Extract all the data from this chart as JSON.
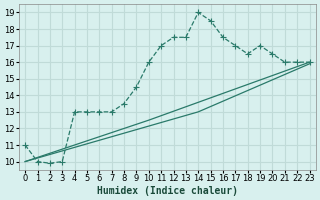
{
  "xlabel": "Humidex (Indice chaleur)",
  "bg_color": "#d8f0ee",
  "grid_color": "#c0dbd8",
  "line_color": "#2a7a6a",
  "xlim": [
    -0.5,
    23.5
  ],
  "ylim": [
    9.5,
    19.5
  ],
  "xticks": [
    0,
    1,
    2,
    3,
    4,
    5,
    6,
    7,
    8,
    9,
    10,
    11,
    12,
    13,
    14,
    15,
    16,
    17,
    18,
    19,
    20,
    21,
    22,
    23
  ],
  "yticks": [
    10,
    11,
    12,
    13,
    14,
    15,
    16,
    17,
    18,
    19
  ],
  "line1_x": [
    0,
    1,
    2,
    3,
    4,
    5,
    6,
    7,
    8,
    9,
    10,
    11,
    12,
    13,
    14,
    15,
    16,
    17,
    18,
    19,
    20,
    21,
    22,
    23
  ],
  "line1_y": [
    11,
    10,
    9.9,
    10,
    13,
    13,
    13,
    13,
    13.5,
    14.5,
    16,
    17,
    17.5,
    17.5,
    19,
    18.5,
    17.5,
    17,
    16.5,
    17,
    16.5,
    16,
    16,
    16
  ],
  "line2_x": [
    0,
    10,
    23
  ],
  "line2_y": [
    10,
    12.5,
    16
  ],
  "line3_x": [
    0,
    14,
    23
  ],
  "line3_y": [
    10,
    13,
    15.9
  ]
}
